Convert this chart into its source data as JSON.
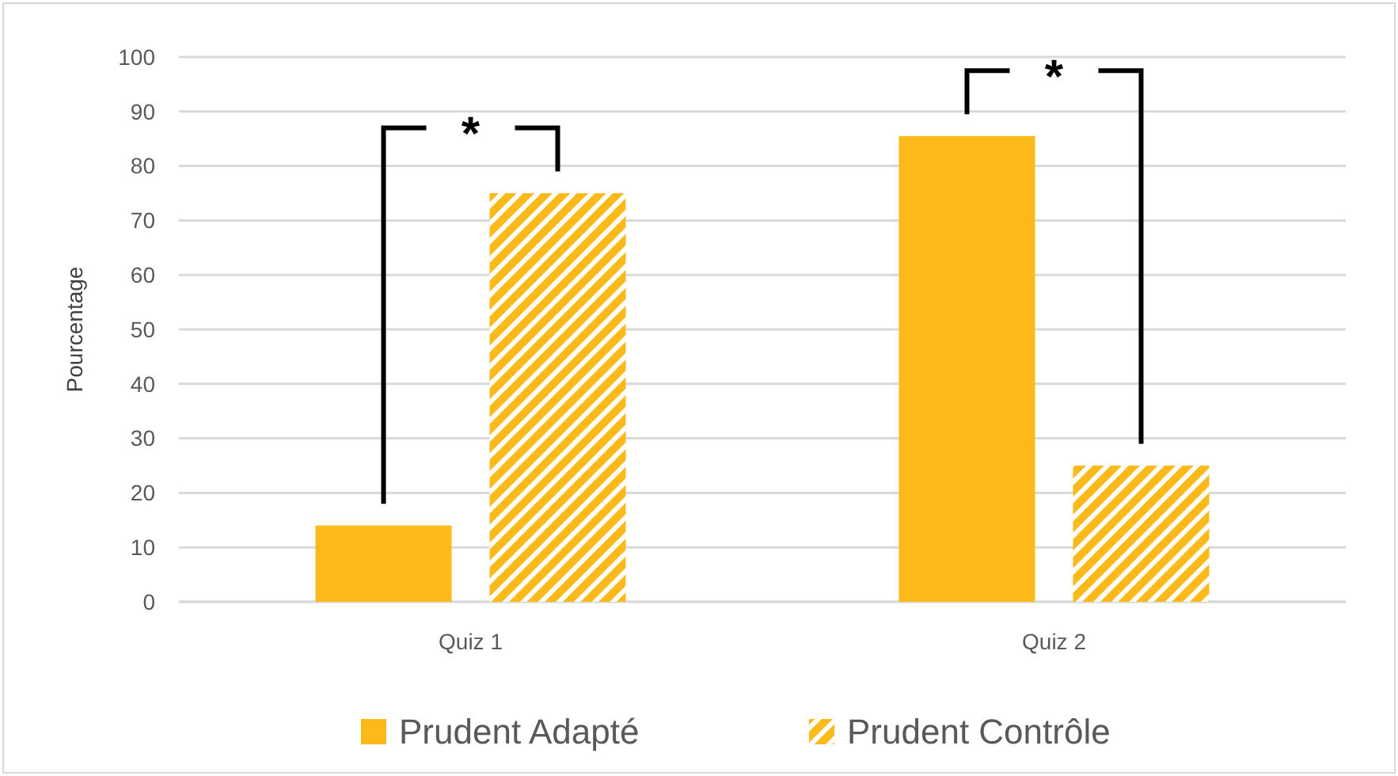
{
  "chart_data": {
    "type": "bar",
    "ylabel": "Pourcentage",
    "categories": [
      "Quiz 1",
      "Quiz 2"
    ],
    "series": [
      {
        "name": "Prudent Adapté",
        "color": "#fbba1a",
        "values": [
          14,
          85.5
        ]
      },
      {
        "name": "Prudent Contrôle",
        "color": "#fbba1a",
        "values": [
          75,
          25
        ]
      }
    ],
    "ylim": [
      0,
      100
    ],
    "yticks": [
      0,
      10,
      20,
      30,
      40,
      50,
      60,
      70,
      80,
      90,
      100
    ],
    "grid": "y",
    "legend": "bottom",
    "annotations": [
      "*",
      "*"
    ]
  }
}
